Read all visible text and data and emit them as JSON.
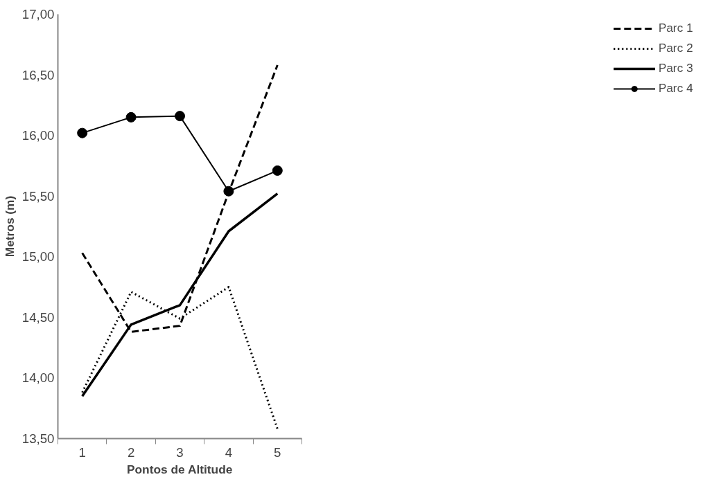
{
  "chart_data": {
    "type": "line",
    "xlabel": "Pontos de Altitude",
    "ylabel": "Metros (m)",
    "categories": [
      "1",
      "2",
      "3",
      "4",
      "5"
    ],
    "ylim": [
      13.5,
      17
    ],
    "yticks": [
      {
        "value": 13.5,
        "label": "13,50"
      },
      {
        "value": 14,
        "label": "14,00"
      },
      {
        "value": 14.5,
        "label": "14,50"
      },
      {
        "value": 15,
        "label": "15,00"
      },
      {
        "value": 15.5,
        "label": "15,50"
      },
      {
        "value": 16,
        "label": "16,00"
      },
      {
        "value": 16.5,
        "label": "16,50"
      },
      {
        "value": 17,
        "label": "17,00"
      }
    ],
    "grid": false,
    "legend": "right",
    "series": [
      {
        "name": "Parc 1",
        "color": "#000000",
        "line_style": "dashed",
        "marker": "none",
        "values": [
          15.03,
          14.38,
          14.43,
          15.53,
          16.58
        ]
      },
      {
        "name": "Parc 2",
        "color": "#000000",
        "line_style": "dotted",
        "marker": "none",
        "values": [
          13.88,
          14.71,
          14.49,
          14.75,
          13.58
        ]
      },
      {
        "name": "Parc 3",
        "color": "#000000",
        "line_style": "solid",
        "marker": "none",
        "values": [
          13.85,
          14.44,
          14.6,
          15.21,
          15.52
        ]
      },
      {
        "name": "Parc 4",
        "color": "#000000",
        "line_style": "solid",
        "marker": "circle",
        "values": [
          16.02,
          16.15,
          16.16,
          15.54,
          15.71
        ]
      }
    ]
  }
}
